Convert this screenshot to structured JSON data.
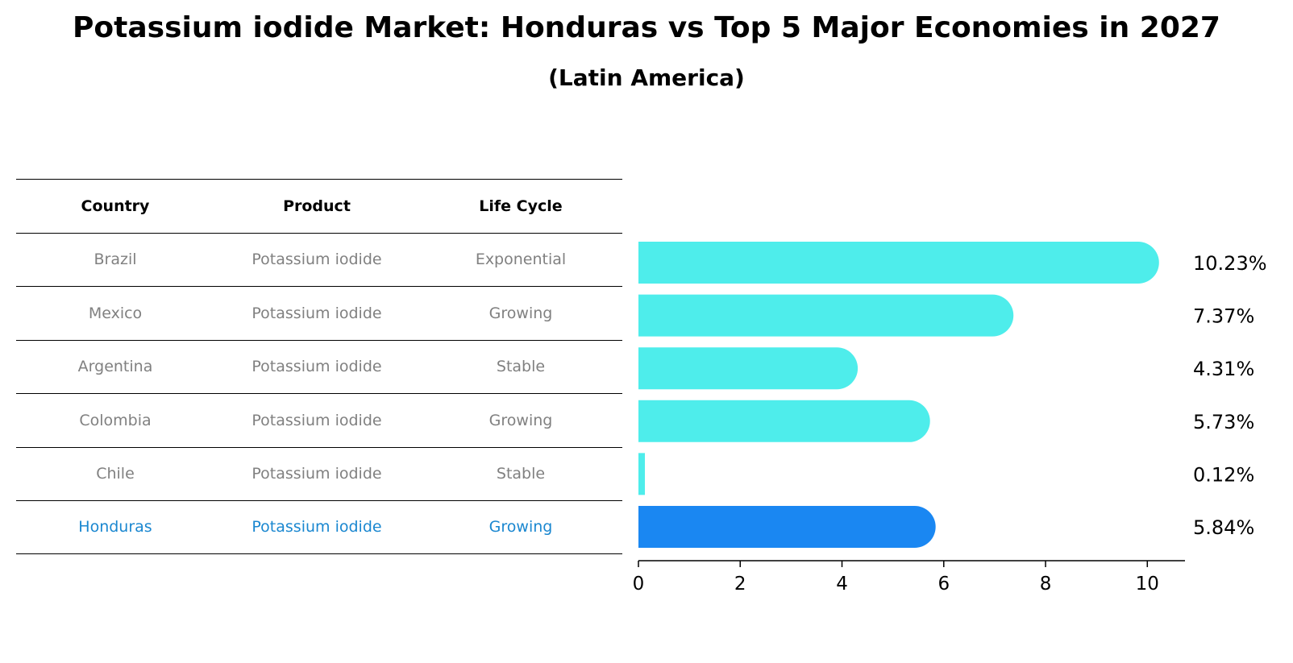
{
  "title": "Potassium iodide Market: Honduras vs Top 5 Major Economies in 2027",
  "subtitle": "(Latin America)",
  "table": {
    "headers": [
      "Country",
      "Product",
      "Life Cycle"
    ],
    "rows": [
      {
        "country": "Brazil",
        "product": "Potassium iodide",
        "life_cycle": "Exponential"
      },
      {
        "country": "Mexico",
        "product": "Potassium iodide",
        "life_cycle": "Growing"
      },
      {
        "country": "Argentina",
        "product": "Potassium iodide",
        "life_cycle": "Stable"
      },
      {
        "country": "Colombia",
        "product": "Potassium iodide",
        "life_cycle": "Growing"
      },
      {
        "country": "Chile",
        "product": "Potassium iodide",
        "life_cycle": "Stable"
      },
      {
        "country": "Honduras",
        "product": "Potassium iodide",
        "life_cycle": "Growing"
      }
    ]
  },
  "colors": {
    "bar": "#4eedeb",
    "highlight_bar": "#1a87f2",
    "highlight_text": "#1a87d0",
    "muted_text": "#808080"
  },
  "chart_data": {
    "type": "bar",
    "orientation": "horizontal",
    "categories": [
      "Brazil",
      "Mexico",
      "Argentina",
      "Colombia",
      "Chile",
      "Honduras"
    ],
    "values": [
      10.23,
      7.37,
      4.31,
      5.73,
      0.12,
      5.84
    ],
    "value_labels": [
      "10.23%",
      "7.37%",
      "4.31%",
      "5.73%",
      "0.12%",
      "5.84%"
    ],
    "highlight": "Honduras",
    "xlim": [
      0,
      10.74
    ],
    "xticks": [
      0,
      2,
      4,
      6,
      8,
      10
    ],
    "grid": false
  }
}
